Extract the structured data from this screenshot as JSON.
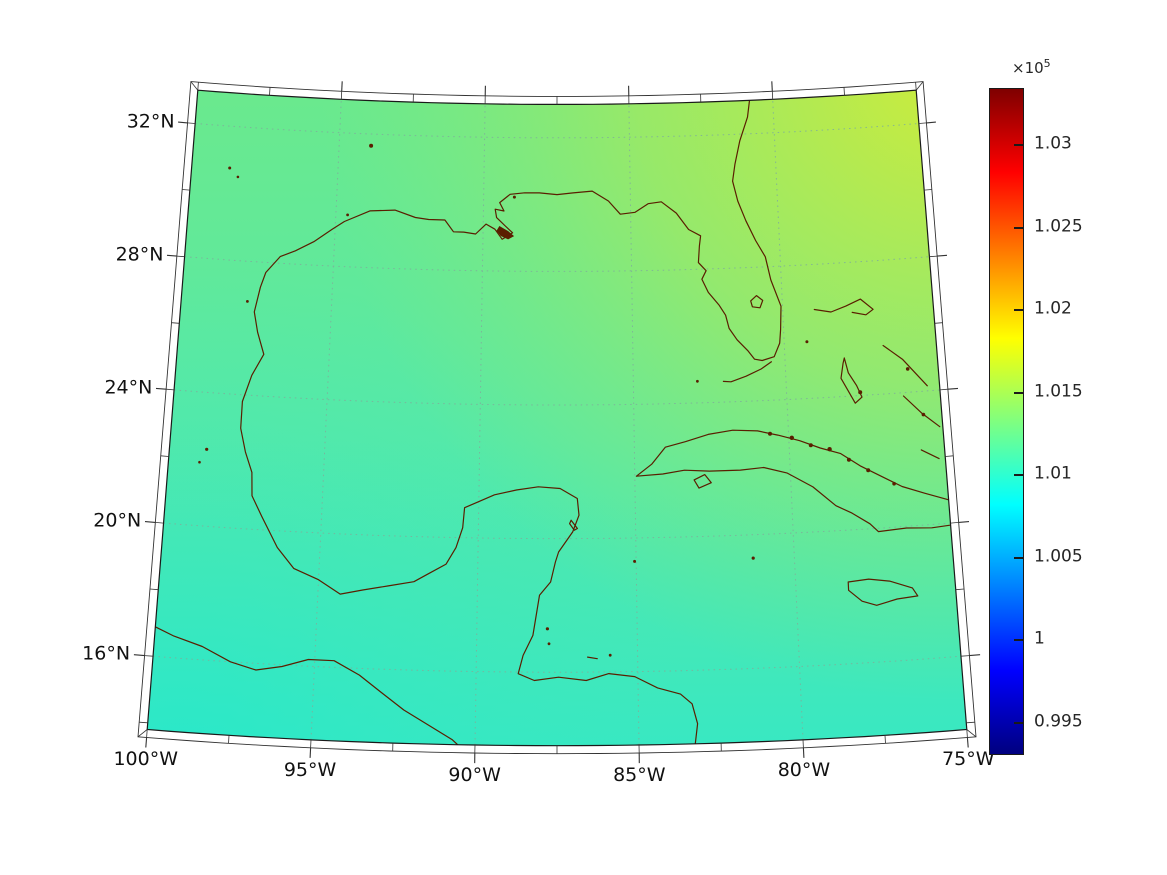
{
  "figure": {
    "background": "#ffffff",
    "description": "Map of the Gulf of Mexico region with a smooth pseudocolor field and a jet colorbar"
  },
  "map": {
    "region": "Gulf of Mexico and western Caribbean",
    "coastline_color": "#5a1e00",
    "grid_color": "#7fae9b",
    "lat_tick_labels": [
      {
        "label": "32°N",
        "lat": 32
      },
      {
        "label": "28°N",
        "lat": 28
      },
      {
        "label": "24°N",
        "lat": 24
      },
      {
        "label": "20°N",
        "lat": 20
      },
      {
        "label": "16°N",
        "lat": 16
      }
    ],
    "lon_tick_labels": [
      {
        "label": "100°W",
        "lon": -100
      },
      {
        "label": "95°W",
        "lon": -95
      },
      {
        "label": "90°W",
        "lon": -90
      },
      {
        "label": "85°W",
        "lon": -85
      },
      {
        "label": "80°W",
        "lon": -80
      },
      {
        "label": "75°W",
        "lon": -75
      }
    ]
  },
  "colorbar": {
    "multiplier_base": "×10",
    "multiplier_exp": "5",
    "colormap": "jet",
    "vmin": 0.993,
    "vmax": 1.0334,
    "ticks": [
      {
        "label": "1.03",
        "value": 1.03
      },
      {
        "label": "1.025",
        "value": 1.025
      },
      {
        "label": "1.02",
        "value": 1.02
      },
      {
        "label": "1.015",
        "value": 1.015
      },
      {
        "label": "1.01",
        "value": 1.01
      },
      {
        "label": "1.005",
        "value": 1.005
      },
      {
        "label": "1",
        "value": 1.0
      },
      {
        "label": "0.995",
        "value": 0.995
      }
    ]
  },
  "chart_data": {
    "type": "heatmap",
    "title": "",
    "field": "surface pressure-like scalar field (units ×10^5)",
    "projection": "conic projection with curved graticule, Gulf of Mexico view",
    "lon_ticks": [
      "100°W",
      "95°W",
      "90°W",
      "85°W",
      "80°W",
      "75°W"
    ],
    "lat_ticks": [
      "16°N",
      "20°N",
      "24°N",
      "28°N",
      "32°N"
    ],
    "lon_range_deg_west": [
      100,
      75
    ],
    "lat_range_deg_north": [
      13.8,
      33.0
    ],
    "colormap": "jet",
    "colorbar_scale": "×10^5",
    "colorbar_ticks": [
      0.995,
      1.0,
      1.005,
      1.01,
      1.015,
      1.02,
      1.025,
      1.03
    ],
    "colorbar_range": [
      0.993,
      1.0334
    ],
    "grid": "dotted graticule every 5° lon / 4° lat",
    "legend_position": "colorbar right",
    "field_estimates_x1e5": {
      "grid_lons_west": [
        100,
        95,
        90,
        85,
        80,
        75
      ],
      "grid_lats_north": [
        16,
        20,
        24,
        28,
        32
      ],
      "values_rows_south_to_north": [
        [
          1.0082,
          1.0085,
          1.0089,
          1.0093,
          1.0099,
          1.0106
        ],
        [
          1.0088,
          1.0093,
          1.0098,
          1.0104,
          1.0112,
          1.0121
        ],
        [
          1.0096,
          1.0102,
          1.0109,
          1.0117,
          1.0127,
          1.0137
        ],
        [
          1.0105,
          1.0112,
          1.0121,
          1.0131,
          1.0141,
          1.0149
        ],
        [
          1.0113,
          1.0123,
          1.0133,
          1.0145,
          1.0153,
          1.0157
        ]
      ]
    },
    "gradient_summary": "values increase from ~1.008×10^5 (cyan) in the south/southwest to ~1.0156×10^5 (yellow-green) in the northeast corner",
    "overlays": [
      "coastlines: US Gulf coast, Florida, Mexico, Yucatán, Belize, Honduras, Cuba, Jamaica, Bahamas, Pacific coast of Mexico/Guatemala"
    ]
  }
}
